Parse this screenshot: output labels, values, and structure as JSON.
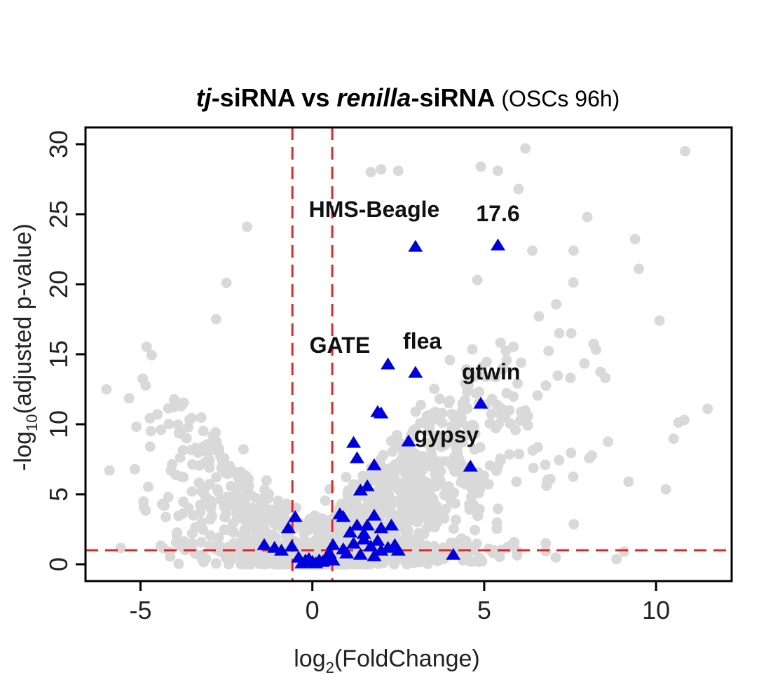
{
  "chart_data": {
    "type": "scatter",
    "title": {
      "part1": "tj",
      "part2": "-siRNA vs ",
      "part3": "renilla",
      "part4": "-siRNA",
      "part5": " (OSCs 96h)"
    },
    "xlabel": {
      "prefix": "log",
      "sub": "2",
      "suffix": "(FoldChange)"
    },
    "ylabel": {
      "prefix": "-log",
      "sub": "10",
      "suffix": "(adjusted p-value)"
    },
    "xlim": [
      -6.6,
      12.2
    ],
    "ylim": [
      -1.2,
      31.2
    ],
    "x_ticks": [
      -5,
      0,
      5,
      10
    ],
    "x_tick_labels": [
      "-5",
      "0",
      "5",
      "10"
    ],
    "y_ticks": [
      0,
      5,
      10,
      15,
      20,
      25,
      30
    ],
    "y_tick_labels": [
      "0",
      "5",
      "10",
      "15",
      "20",
      "25",
      "30"
    ],
    "thresholds": {
      "x": [
        -0.58,
        0.58
      ],
      "y": 1.0
    },
    "colors": {
      "background_genes": "#d9d9d9",
      "transposons": "#0000dd",
      "threshold_lines": "#e8231f"
    },
    "highlighted_series": {
      "marker": "triangle",
      "points": [
        [
          3.0,
          22.7
        ],
        [
          5.4,
          22.8
        ],
        [
          2.2,
          14.3
        ],
        [
          3.0,
          13.7
        ],
        [
          4.9,
          11.5
        ],
        [
          4.6,
          7.0
        ],
        [
          1.9,
          10.9
        ],
        [
          2.0,
          10.8
        ],
        [
          1.2,
          8.7
        ],
        [
          2.8,
          8.8
        ],
        [
          1.3,
          7.6
        ],
        [
          1.8,
          7.1
        ],
        [
          1.6,
          5.6
        ],
        [
          1.4,
          5.3
        ],
        [
          -0.5,
          3.4
        ],
        [
          -0.7,
          2.6
        ],
        [
          0.8,
          3.6
        ],
        [
          0.9,
          3.4
        ],
        [
          1.8,
          3.5
        ],
        [
          1.3,
          2.8
        ],
        [
          1.6,
          2.8
        ],
        [
          2.3,
          2.8
        ],
        [
          1.1,
          2.3
        ],
        [
          1.5,
          2.2
        ],
        [
          2.0,
          2.6
        ],
        [
          -1.4,
          1.4
        ],
        [
          -1.1,
          1.2
        ],
        [
          -0.9,
          1.0
        ],
        [
          -0.6,
          1.3
        ],
        [
          0.6,
          1.4
        ],
        [
          0.9,
          1.1
        ],
        [
          1.2,
          1.5
        ],
        [
          1.5,
          1.8
        ],
        [
          1.7,
          1.3
        ],
        [
          1.9,
          1.7
        ],
        [
          2.2,
          1.2
        ],
        [
          2.4,
          1.4
        ],
        [
          2.5,
          1.0
        ],
        [
          1.0,
          0.8
        ],
        [
          1.4,
          0.7
        ],
        [
          1.8,
          0.6
        ],
        [
          2.0,
          1.0
        ],
        [
          4.1,
          0.7
        ],
        [
          -0.4,
          0.5
        ],
        [
          -0.2,
          0.3
        ],
        [
          0.0,
          0.2
        ],
        [
          0.2,
          0.3
        ],
        [
          0.4,
          0.5
        ],
        [
          -0.3,
          0.1
        ],
        [
          0.1,
          0.1
        ],
        [
          0.3,
          0.2
        ],
        [
          0.5,
          0.8
        ],
        [
          -0.1,
          0.4
        ],
        [
          0.6,
          0.3
        ]
      ]
    },
    "annotations": [
      {
        "label": "HMS-Beagle",
        "x": 1.8,
        "y": 24.8
      },
      {
        "label": "17.6",
        "x": 5.4,
        "y": 24.5
      },
      {
        "label": "GATE",
        "x": 0.8,
        "y": 15.1
      },
      {
        "label": "flea",
        "x": 3.2,
        "y": 15.4
      },
      {
        "label": "gtwin",
        "x": 5.2,
        "y": 13.2
      },
      {
        "label": "gypsy",
        "x": 3.9,
        "y": 8.7
      }
    ],
    "background_series": {
      "marker": "circle",
      "n_points": 1500,
      "outliers": [
        [
          6.2,
          29.7
        ],
        [
          1.7,
          28.0
        ],
        [
          2.0,
          28.2
        ],
        [
          2.5,
          28.1
        ],
        [
          4.9,
          28.4
        ],
        [
          5.4,
          28.1
        ],
        [
          6.0,
          26.8
        ],
        [
          8.0,
          24.8
        ],
        [
          -1.9,
          24.1
        ],
        [
          7.6,
          22.4
        ],
        [
          9.5,
          21.1
        ],
        [
          4.8,
          20.3
        ],
        [
          -2.5,
          20.1
        ],
        [
          10.1,
          17.4
        ],
        [
          11.5,
          11.1
        ],
        [
          -5.9,
          6.7
        ],
        [
          -3.5,
          5.2
        ],
        [
          9.2,
          5.9
        ],
        [
          -4.4,
          9.6
        ],
        [
          -2.8,
          17.5
        ],
        [
          6.4,
          22.4
        ]
      ]
    }
  }
}
